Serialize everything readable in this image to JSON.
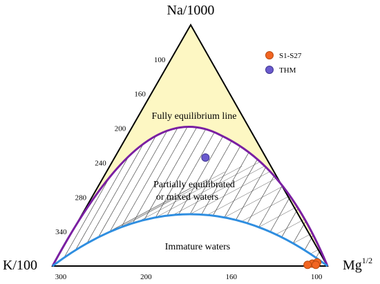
{
  "chart_data": {
    "type": "scatter",
    "diagram": "ternary",
    "vertices": {
      "top": "Na/1000",
      "left": "K/100",
      "right_base": "Mg",
      "right_sup": "1/2"
    },
    "left_axis_ticks": [
      "100",
      "160",
      "200",
      "240",
      "280",
      "340"
    ],
    "bottom_axis_ticks": [
      "300",
      "200",
      "160",
      "100"
    ],
    "zone_labels": {
      "full": "Fully equilibrium line",
      "partial_line1": "Partially equilibrated",
      "partial_line2": "or mixed waters",
      "immature": "Immature waters"
    },
    "series": [
      {
        "name": "S1-S27",
        "color": "#f26522",
        "stroke": "#b84a10",
        "points": [
          [
            0.05,
            0.01,
            0.94
          ],
          [
            0.03,
            0.015,
            0.955
          ],
          [
            0.07,
            0.005,
            0.925
          ],
          [
            0.04,
            0.005,
            0.955
          ]
        ]
      },
      {
        "name": "THM",
        "color": "#6a5acd",
        "stroke": "#3f3591",
        "points": [
          [
            0.22,
            0.45,
            0.33
          ]
        ]
      }
    ],
    "lines": {
      "full_equilibrium_color": "#7a1fa2",
      "immature_boundary_color": "#2f8ee0",
      "fill_color": "#fdf7c3"
    }
  }
}
